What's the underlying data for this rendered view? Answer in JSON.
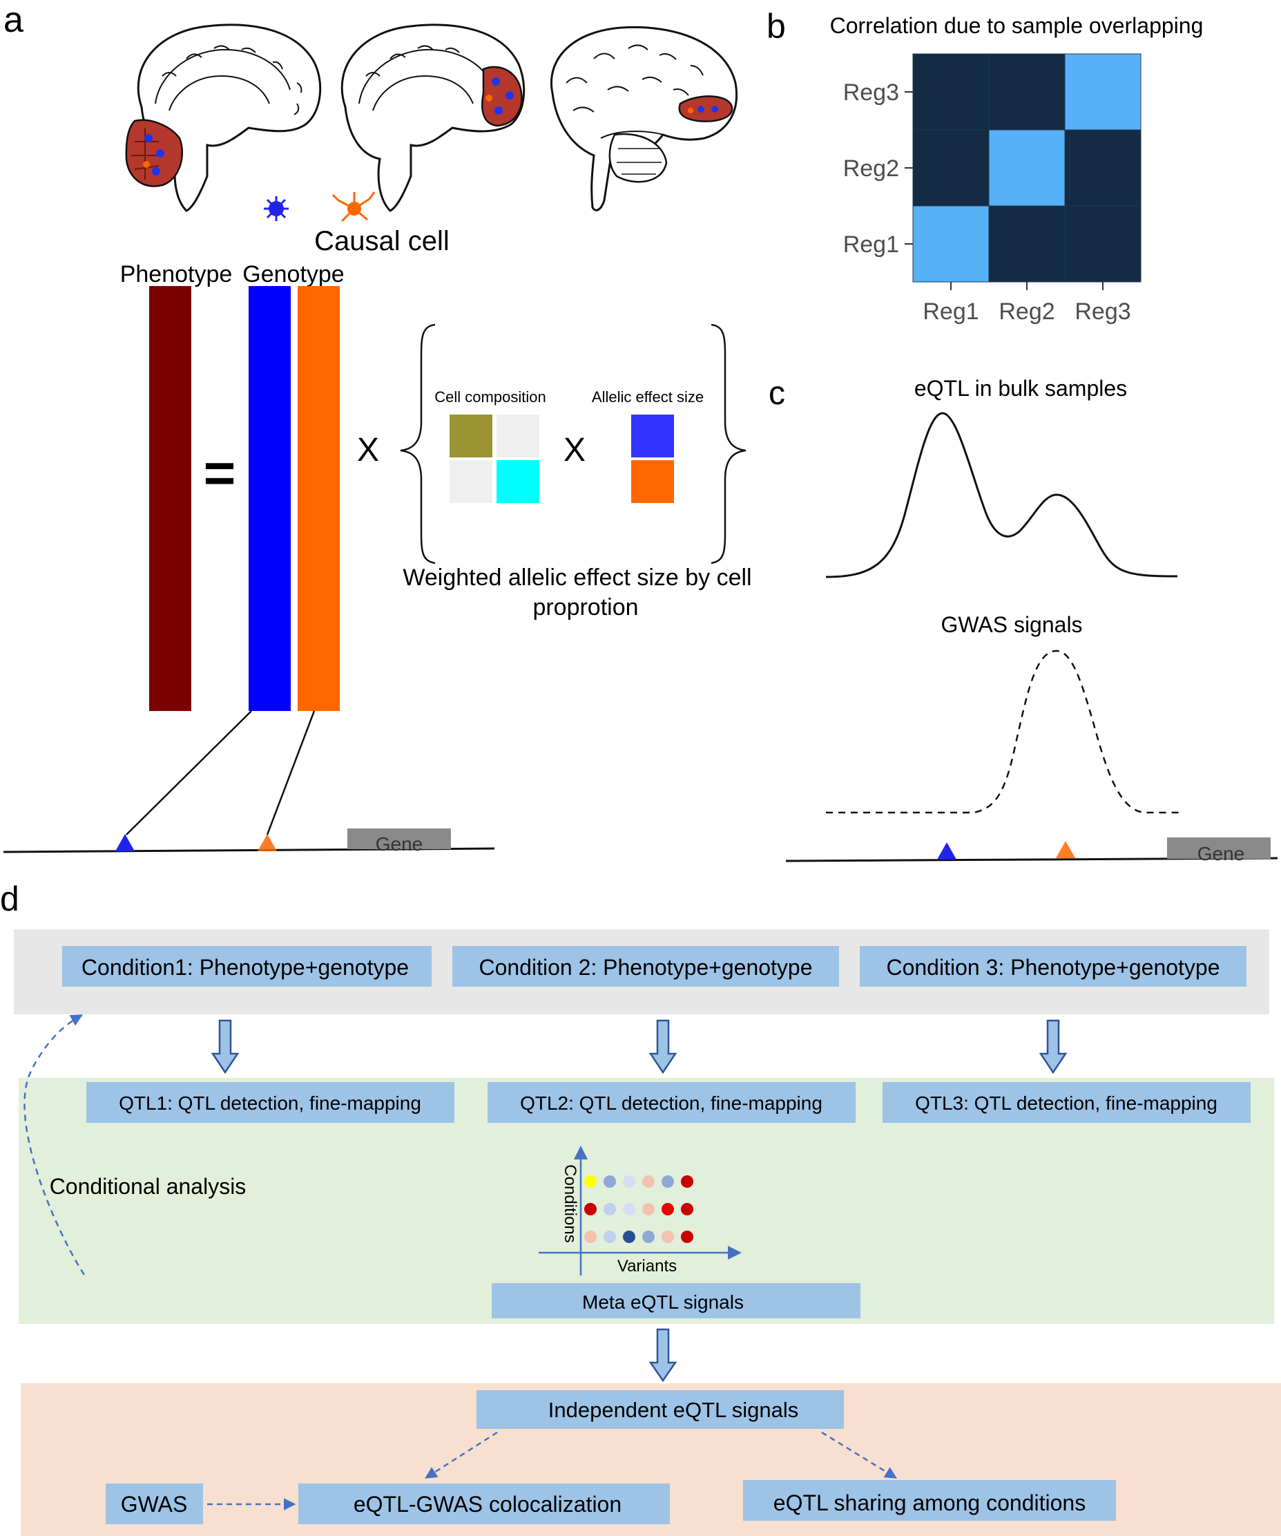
{
  "panel_a": {
    "letter": "a",
    "causal_cell_label": "Causal cell",
    "phenotype_label": "Phenotype",
    "genotype_label": "Genotype",
    "equals_sign": "=",
    "times_sign_1": "X",
    "times_sign_2": "X",
    "cell_composition_label": "Cell composition",
    "allelic_effect_label": "Allelic effect size",
    "weighted_caption_line1": "Weighted allelic effect size by cell",
    "weighted_caption_line2": "proprotion",
    "gene_label": "Gene",
    "colors": {
      "phenotype": "#7b0000",
      "genotype_blue": "#0000ff",
      "genotype_orange": "#ff6600",
      "cell_olive": "#9a9433",
      "cell_cyan": "#00ffff",
      "cell_grey": "#efefef",
      "effect_blue": "#3333ff",
      "effect_orange": "#ff6600",
      "brain_region": "#b5382c"
    }
  },
  "panel_b": {
    "letter": "b",
    "chart_data": {
      "type": "heatmap",
      "title": "Correlation due to sample overlapping",
      "x_categories": [
        "Reg1",
        "Reg2",
        "Reg3"
      ],
      "y_categories": [
        "Reg1",
        "Reg2",
        "Reg3"
      ],
      "values": [
        [
          1,
          0,
          0
        ],
        [
          0,
          1,
          0
        ],
        [
          0,
          0,
          1
        ]
      ],
      "xlabel": "",
      "ylabel": "",
      "colors": {
        "low": "#132b43",
        "high": "#56b1f7"
      }
    }
  },
  "panel_c": {
    "letter": "c",
    "eqtl_title": "eQTL in bulk samples",
    "gwas_title": "GWAS signals",
    "gene_label": "Gene"
  },
  "panel_d": {
    "letter": "d",
    "conditions": [
      "Condition1: Phenotype+genotype",
      "Condition 2: Phenotype+genotype",
      "Condition 3: Phenotype+genotype"
    ],
    "qtls": [
      "QTL1: QTL detection, fine-mapping",
      "QTL2: QTL detection, fine-mapping",
      "QTL3: QTL detection, fine-mapping"
    ],
    "conditional_analysis_label": "Conditional analysis",
    "y_axis_label": "Conditions",
    "x_axis_label": "Variants",
    "meta_label": "Meta eQTL signals",
    "independent_label": "Independent eQTL signals",
    "gwas_label": "GWAS",
    "coloc_label": "eQTL-GWAS colocalization",
    "sharing_label": "eQTL sharing among conditions",
    "dot_rows": [
      [
        "#ffff00",
        "#8fa8d8",
        "#d5def2",
        "#f3c2ae",
        "#8fa8d8",
        "#c80000"
      ],
      [
        "#c80000",
        "#bfd0ee",
        "#d5def2",
        "#f3c2ae",
        "#ee0000",
        "#c80000"
      ],
      [
        "#f3c2ae",
        "#bfd0ee",
        "#2a4f90",
        "#8fa8d8",
        "#f3c2ae",
        "#c80000"
      ]
    ],
    "colors": {
      "grey_band": "#e7e7e7",
      "green_band": "#e2efda",
      "peach_band": "#f8e0d0",
      "box": "#9dc3e6",
      "arrow": "#9dc3e6",
      "arrow_stroke": "#2f5597"
    }
  }
}
